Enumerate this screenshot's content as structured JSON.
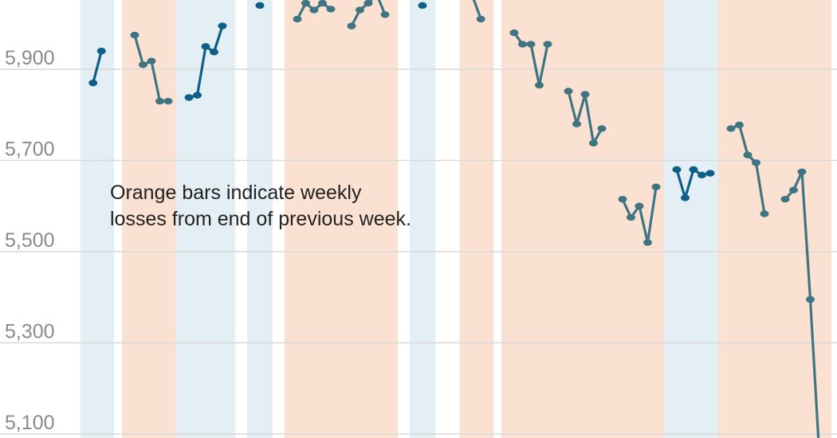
{
  "chart_data": {
    "type": "line",
    "title": "",
    "xlabel": "",
    "ylabel": "",
    "ylim": [
      5080,
      6050
    ],
    "yticks": [
      5100,
      5300,
      5500,
      5700,
      5900
    ],
    "ytick_labels": [
      "5,100",
      "5,300",
      "5,500",
      "5,700",
      "5,900"
    ],
    "grid": true,
    "annotation": {
      "line1": "Orange bars indicate weekly",
      "line2": "losses from end of previous week."
    },
    "colors": {
      "up_band": "#e3eff5",
      "down_band": "#fbe1d1",
      "up_line": "#0f5e86",
      "down_line": "#3f7483",
      "grid": "#d9d9d9",
      "tick": "#8a8a8a"
    },
    "weeks": [
      {
        "outcome": "gain",
        "values": [
          5870,
          5940
        ]
      },
      {
        "outcome": "loss",
        "values": [
          5975,
          5910,
          5918,
          5830,
          5830
        ]
      },
      {
        "outcome": "gain",
        "values": [
          5838,
          5843,
          5950,
          5938,
          5995
        ]
      },
      {
        "outcome": "gain",
        "values": [
          6040
        ]
      },
      {
        "outcome": "loss",
        "values": [
          6010,
          6045,
          6030,
          6045,
          6032
        ]
      },
      {
        "outcome": "loss",
        "values": [
          5995,
          6030,
          6045,
          6065,
          6020
        ]
      },
      {
        "outcome": "gain",
        "values": [
          6040
        ]
      },
      {
        "outcome": "loss",
        "values": [
          6060,
          6010
        ]
      },
      {
        "outcome": "loss",
        "values": [
          5980,
          5955,
          5955,
          5865,
          5955
        ]
      },
      {
        "outcome": "loss",
        "values": [
          5852,
          5780,
          5845,
          5738,
          5770
        ]
      },
      {
        "outcome": "loss",
        "values": [
          5615,
          5575,
          5600,
          5520,
          5642
        ]
      },
      {
        "outcome": "gain",
        "values": [
          5680,
          5618,
          5680,
          5668,
          5672
        ]
      },
      {
        "outcome": "loss",
        "values": [
          5770,
          5778,
          5712,
          5695,
          5583
        ]
      },
      {
        "outcome": "loss",
        "values": [
          5615,
          5635,
          5675,
          5395,
          5080
        ]
      }
    ]
  }
}
